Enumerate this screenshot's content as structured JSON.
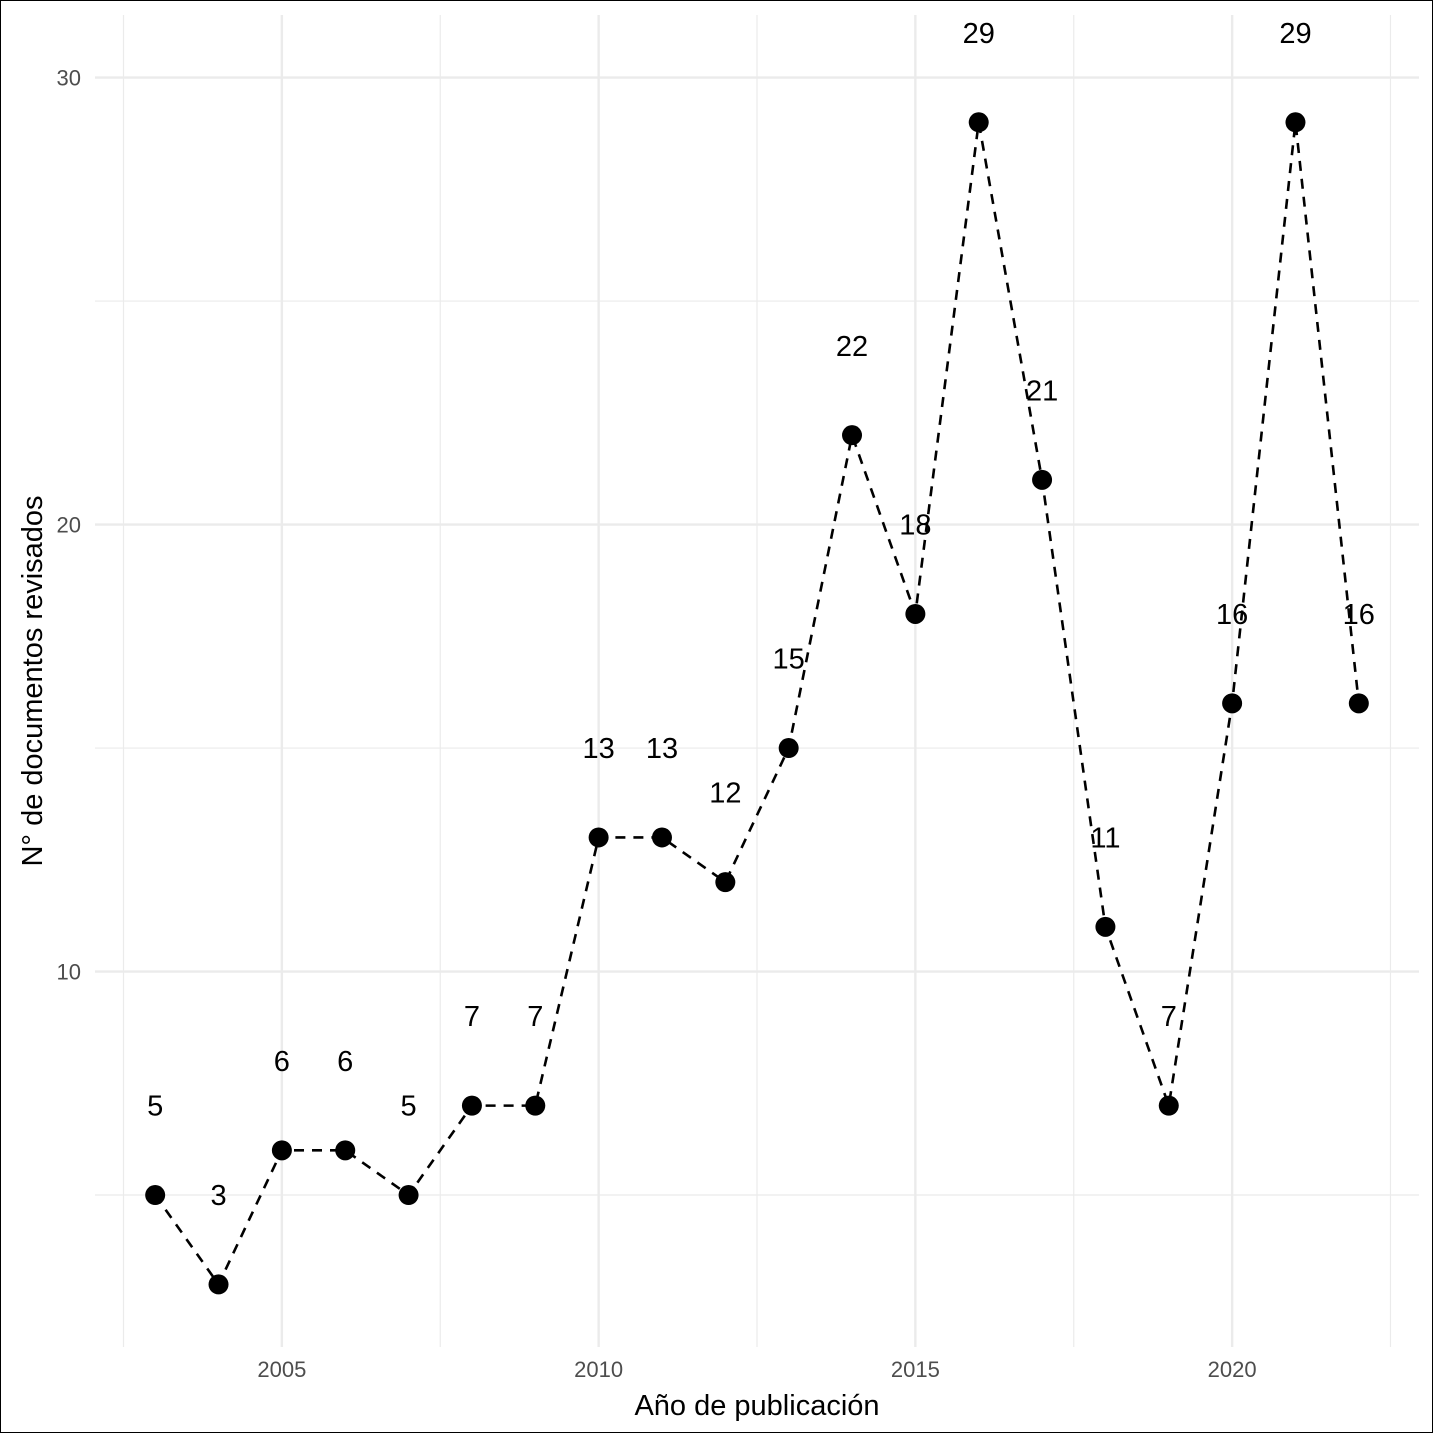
{
  "chart_data": {
    "type": "line",
    "xlabel": "Año de publicación",
    "ylabel": "N° de documentos revisados",
    "x": [
      2003,
      2004,
      2005,
      2006,
      2007,
      2008,
      2009,
      2010,
      2011,
      2012,
      2013,
      2014,
      2015,
      2016,
      2017,
      2018,
      2019,
      2020,
      2021,
      2022
    ],
    "series": [
      {
        "values": [
          5,
          3,
          6,
          6,
          5,
          7,
          7,
          13,
          13,
          12,
          15,
          22,
          18,
          29,
          21,
          11,
          7,
          16,
          29,
          16
        ]
      }
    ],
    "data_labels": [
      "5",
      "3",
      "6",
      "6",
      "5",
      "7",
      "7",
      "13",
      "13",
      "12",
      "15",
      "22",
      "18",
      "29",
      "21",
      "11",
      "7",
      "16",
      "29",
      "16"
    ],
    "x_ticks": [
      2005,
      2010,
      2015,
      2020
    ],
    "x_tick_labels": [
      "2005",
      "2010",
      "2015",
      "2020"
    ],
    "y_ticks": [
      10,
      20,
      30
    ],
    "y_tick_labels": [
      "10",
      "20",
      "30"
    ],
    "xlim": [
      2002.05,
      2022.95
    ],
    "ylim": [
      1.6,
      31.4
    ],
    "grid": true,
    "line_style": "dashed",
    "marker": "filled-circle",
    "colors": {
      "line": "#000000",
      "grid": "#ebebeb",
      "tick_text": "#4d4d4d"
    }
  }
}
